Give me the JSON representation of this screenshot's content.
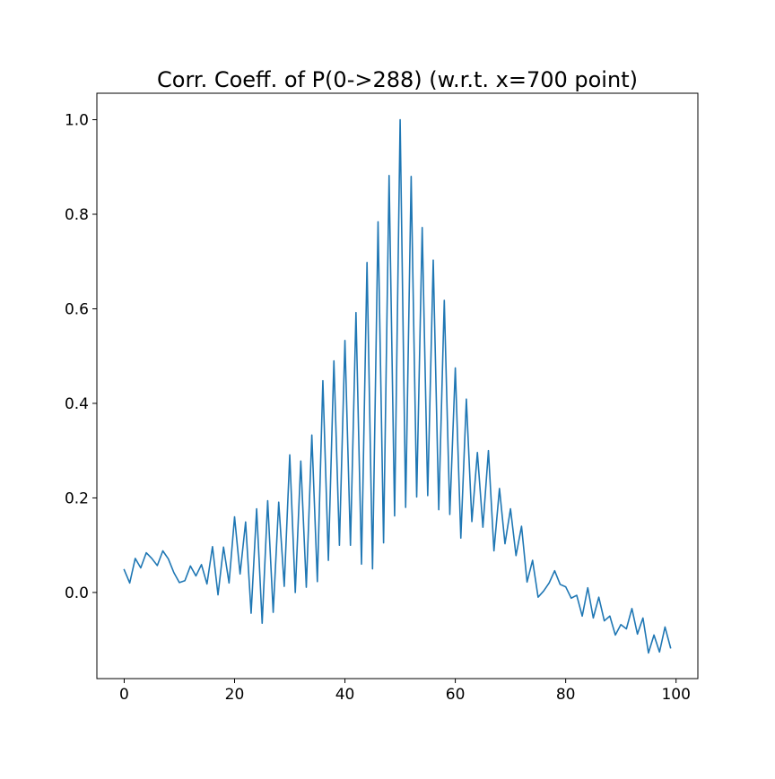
{
  "chart_data": {
    "type": "line",
    "title": "Corr. Coeff. of P(0->288) (w.r.t. x=700 point)",
    "xlabel": "",
    "ylabel": "",
    "xlim": [
      -4.95,
      103.95
    ],
    "ylim": [
      -0.1822,
      1.056
    ],
    "xticks": [
      0,
      20,
      40,
      60,
      80,
      100
    ],
    "yticks": [
      0.0,
      0.2,
      0.4,
      0.6,
      0.8,
      1.0
    ],
    "xtick_labels": [
      "0",
      "20",
      "40",
      "60",
      "80",
      "100"
    ],
    "ytick_labels": [
      "0.0",
      "0.2",
      "0.4",
      "0.6",
      "0.8",
      "1.0"
    ],
    "grid": false,
    "legend": "none",
    "series": [
      {
        "color": "#1f77b4",
        "x": [
          0,
          1,
          2,
          3,
          4,
          5,
          6,
          7,
          8,
          9,
          10,
          11,
          12,
          13,
          14,
          15,
          16,
          17,
          18,
          19,
          20,
          21,
          22,
          23,
          24,
          25,
          26,
          27,
          28,
          29,
          30,
          31,
          32,
          33,
          34,
          35,
          36,
          37,
          38,
          39,
          40,
          41,
          42,
          43,
          44,
          45,
          46,
          47,
          48,
          49,
          50,
          51,
          52,
          53,
          54,
          55,
          56,
          57,
          58,
          59,
          60,
          61,
          62,
          63,
          64,
          65,
          66,
          67,
          68,
          69,
          70,
          71,
          72,
          73,
          74,
          75,
          76,
          77,
          78,
          79,
          80,
          81,
          82,
          83,
          84,
          85,
          86,
          87,
          88,
          89,
          90,
          91,
          92,
          93,
          94,
          95,
          96,
          97,
          98,
          99
        ],
        "y": [
          0.048,
          0.02,
          0.072,
          0.052,
          0.084,
          0.072,
          0.057,
          0.088,
          0.071,
          0.042,
          0.021,
          0.025,
          0.056,
          0.035,
          0.059,
          0.018,
          0.097,
          -0.005,
          0.096,
          0.02,
          0.16,
          0.039,
          0.149,
          -0.044,
          0.177,
          -0.065,
          0.194,
          -0.042,
          0.191,
          0.013,
          0.291,
          0.0,
          0.278,
          0.011,
          0.333,
          0.023,
          0.448,
          0.068,
          0.49,
          0.1,
          0.533,
          0.1,
          0.592,
          0.06,
          0.698,
          0.05,
          0.784,
          0.105,
          0.882,
          0.162,
          1.0,
          0.18,
          0.88,
          0.202,
          0.772,
          0.205,
          0.703,
          0.175,
          0.618,
          0.165,
          0.475,
          0.115,
          0.409,
          0.15,
          0.296,
          0.138,
          0.3,
          0.088,
          0.22,
          0.103,
          0.177,
          0.078,
          0.14,
          0.022,
          0.068,
          -0.01,
          0.003,
          0.02,
          0.046,
          0.017,
          0.012,
          -0.012,
          -0.006,
          -0.05,
          0.01,
          -0.054,
          -0.01,
          -0.06,
          -0.05,
          -0.09,
          -0.068,
          -0.077,
          -0.034,
          -0.088,
          -0.054,
          -0.128,
          -0.09,
          -0.126,
          -0.073,
          -0.117
        ]
      }
    ]
  }
}
